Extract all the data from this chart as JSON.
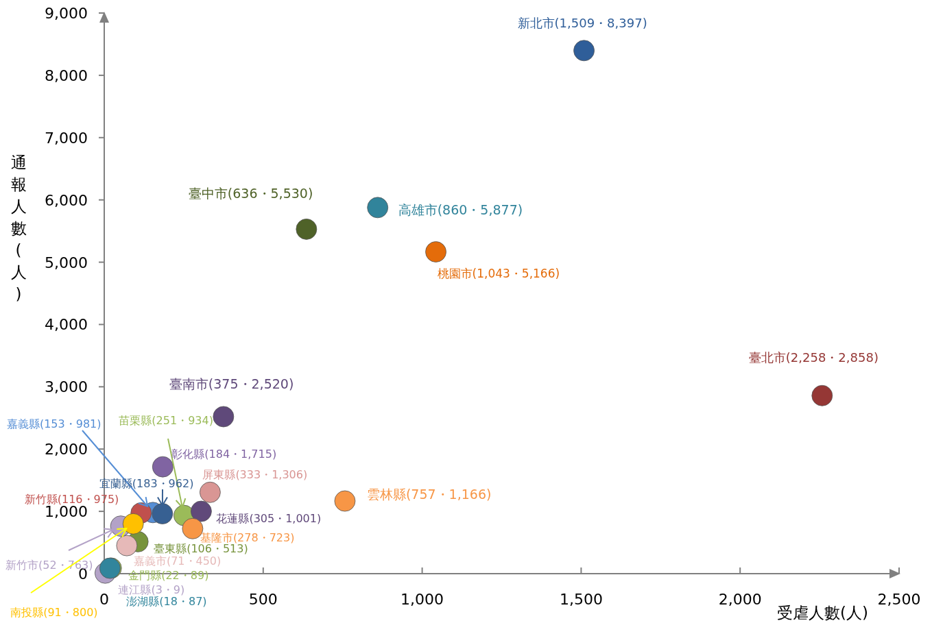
{
  "chart_data": {
    "type": "scatter",
    "xlabel": "受虐人數(人)",
    "ylabel": "通報人數(人)",
    "marker": "circle",
    "grid": false,
    "x": [
      1509,
      636,
      860,
      1043,
      2258,
      375,
      153,
      251,
      184,
      333,
      183,
      116,
      757,
      305,
      278,
      106,
      71,
      22,
      52,
      3,
      18,
      91
    ],
    "values": [
      8397,
      5530,
      5877,
      5166,
      2858,
      2520,
      981,
      934,
      1715,
      1306,
      962,
      975,
      1166,
      1001,
      723,
      513,
      450,
      89,
      763,
      9,
      87,
      800
    ],
    "colors": [
      "#2f5e99",
      "#4f6228",
      "#31849b",
      "#e46c0a",
      "#953735",
      "#5f497a",
      "#558ed5",
      "#9bbb59",
      "#8064a2",
      "#d99694",
      "#376092",
      "#c0504d",
      "#f79646",
      "#60497a",
      "#f79646",
      "#77933c",
      "#e6b9b8",
      "#9bbb59",
      "#b3a2c7",
      "#b3a2c7",
      "#31859c",
      "#ffc000"
    ],
    "value_labels": [
      "新北市(1,509・8,397)",
      "臺中市(636・5,530)",
      "高雄市(860・5,877)",
      "桃園市(1,043・5,166)",
      "臺北市(2,258・2,858)",
      "臺南市(375・2,520)",
      "嘉義縣(153・981)",
      "苗栗縣(251・934)",
      "彰化縣(184・1,715)",
      "屏東縣(333・1,306)",
      "宜蘭縣(183・962)",
      "新竹縣(116・975)",
      "雲林縣(757・1,166)",
      "花蓮縣(305・1,001)",
      "基隆市(278・723)",
      "臺東縣(106・513)",
      "嘉義市(71・450)",
      "金門縣(22・89)",
      "新竹市(52・763)",
      "連江縣(3・9)",
      "澎湖縣(18・87)",
      "南投縣(91・800)"
    ],
    "xlim": [
      0,
      2500
    ],
    "ylim": [
      0,
      9000
    ],
    "xticks": [
      0,
      500,
      {
        "value": 1000,
        "label": "1,000"
      },
      {
        "value": 1500,
        "label": "1,500"
      },
      {
        "value": 2000,
        "label": "2,000"
      },
      {
        "value": 2500,
        "label": "2,500"
      }
    ],
    "yticks": [
      0,
      {
        "value": 1000,
        "label": "1,000"
      },
      {
        "value": 2000,
        "label": "2,000"
      },
      {
        "value": 3000,
        "label": "3,000"
      },
      {
        "value": 4000,
        "label": "4,000"
      },
      {
        "value": 5000,
        "label": "5,000"
      },
      {
        "value": 6000,
        "label": "6,000"
      },
      {
        "value": 7000,
        "label": "7,000"
      },
      {
        "value": 8000,
        "label": "8,000"
      },
      {
        "value": 9000,
        "label": "9,000"
      }
    ]
  }
}
